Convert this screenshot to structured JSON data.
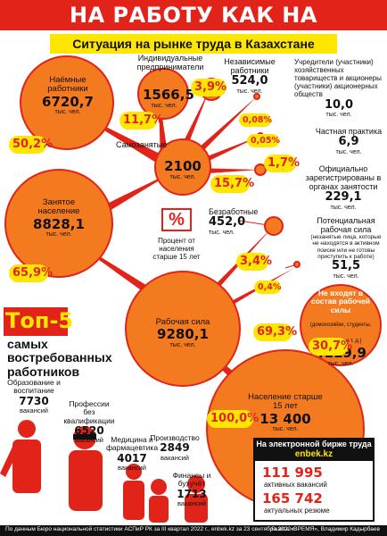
{
  "header": {
    "title": "НА РАБОТУ КАК НА ПРАЗДНИК",
    "subtitle": "Ситуация на рынке труда в Казахстане"
  },
  "unit": "тыс. чел.",
  "nodes": {
    "hired": {
      "name": "Наёмные работники",
      "value": "6720,7",
      "unit": "тыс. чел."
    },
    "individual": {
      "name": "Индивидуальные предприниматели",
      "value": "1566,5",
      "unit": "тыс. чел."
    },
    "independent": {
      "name": "Независимые работники",
      "value": "524,0",
      "unit": "тыс. чел."
    },
    "founders": {
      "name": "Учредители (участники) хозяйственных товариществ и акционеры (участники) акционерных обществ",
      "value": "10,0",
      "unit": "тыс. чел."
    },
    "private_practice": {
      "name": "Частная практика",
      "value": "6,9",
      "unit": "тыс. чел."
    },
    "self_employed": {
      "name": "Самозанятые",
      "value": "2100",
      "unit": "тыс. чел."
    },
    "registered": {
      "name": "Официально зарегистрированы в органах занятости",
      "value": "229,1",
      "unit": "тыс. чел."
    },
    "employed": {
      "name": "Занятое население",
      "value": "8828,1",
      "unit": "тыс. чел."
    },
    "unemployed": {
      "name": "Безработные",
      "value": "452,0",
      "unit": "тыс. чел."
    },
    "potential": {
      "name": "Потенциальная рабочая сила",
      "note": "(незанятые лица, которые не находятся в активном поиске или не готовы приступить к работе)",
      "value": "51,5",
      "unit": "тыс. чел."
    },
    "not_in_force": {
      "name": "Не входят в состав рабочей силы",
      "note": "(домохозяйки, студенты, инвалиды и т. д.)",
      "value": "4119,9",
      "unit": "тыс. чел."
    },
    "labor_force": {
      "name": "Рабочая сила",
      "value": "9280,1",
      "unit": "тыс. чел."
    },
    "population": {
      "name": "Население старше 15 лет",
      "value": "13 400",
      "unit": "тыс. чел."
    }
  },
  "percentages": {
    "hired": "50,2%",
    "individual": "11,7%",
    "independent": "3,9%",
    "founders": "0,08%",
    "private_practice": "0,05%",
    "self_employed": "15,7%",
    "registered": "1,7%",
    "employed": "65,9%",
    "unemployed": "3,4%",
    "potential": "0,4%",
    "labor_force": "69,3%",
    "not_in_force": "30,7%",
    "population": "100,0%"
  },
  "legend": {
    "symbol": "%",
    "text": "Процент от населения старше 15 лет"
  },
  "top5": {
    "title": "Топ-5",
    "subtitle": "самых востребованных работников",
    "jobs": [
      {
        "name": "Образование и воспитание",
        "value": "7730",
        "unit": "вакансий"
      },
      {
        "name": "Профессии без квалификации",
        "value": "6520",
        "unit": "вакансий"
      },
      {
        "name": "Медицина и фармацевтика",
        "value": "4017",
        "unit": "вакансий"
      },
      {
        "name": "Производство",
        "value": "2849",
        "unit": "вакансий"
      },
      {
        "name": "Финансы и бухучёт",
        "value": "1713",
        "unit": "вакансий"
      }
    ]
  },
  "enbek": {
    "heading": "На электронной бирже труда",
    "site": "enbek.kz",
    "vacancies_value": "111 995",
    "vacancies_label": "активных вакансий",
    "resumes_value": "165 742",
    "resumes_label": "актуальных резюме"
  },
  "footer": {
    "source": "По данным Бюро национальной статистики АСПиР РК за III квартал 2022 г., enbek.kz за 23 сентября 2022 г.",
    "credit": "Газета «ВРЕМЯ», Владимир Кадырбаев"
  },
  "colors": {
    "accent_red": "#e2231a",
    "orange": "#f47a1f",
    "yellow": "#ffe600"
  }
}
